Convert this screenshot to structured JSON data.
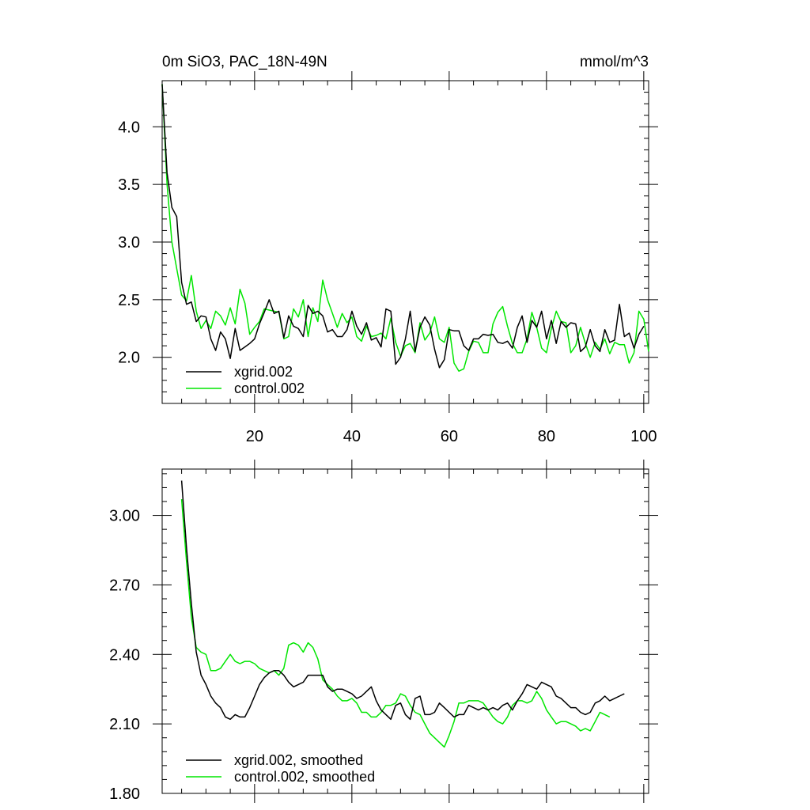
{
  "chart_data": [
    {
      "type": "line",
      "title": "0m SiO3, PAC_18N-49N",
      "units": "mmol/m^3",
      "xlim": [
        1,
        101
      ],
      "ylim": [
        1.6,
        4.4
      ],
      "xticks": [
        20,
        40,
        60,
        80,
        100
      ],
      "yticks": [
        2.0,
        2.5,
        3.0,
        3.5,
        4.0
      ],
      "ytick_labels": [
        "2.0",
        "2.5",
        "3.0",
        "3.5",
        "4.0"
      ],
      "xtick_labels": [
        "20",
        "40",
        "60",
        "80",
        "100"
      ],
      "legend": {
        "placement": "bottom-left"
      },
      "x_start": 1,
      "series": [
        {
          "name": "xgrid.002",
          "color": "#000000",
          "values": [
            4.37,
            3.6,
            3.3,
            3.22,
            2.65,
            2.46,
            2.48,
            2.31,
            2.36,
            2.35,
            2.16,
            2.06,
            2.22,
            2.16,
            1.99,
            2.25,
            2.06,
            2.09,
            2.12,
            2.16,
            2.29,
            2.39,
            2.5,
            2.38,
            2.4,
            2.17,
            2.36,
            2.27,
            2.25,
            2.18,
            2.45,
            2.38,
            2.4,
            2.36,
            2.22,
            2.24,
            2.18,
            2.18,
            2.24,
            2.4,
            2.27,
            2.2,
            2.3,
            2.15,
            2.17,
            2.09,
            2.42,
            2.4,
            1.94,
            2.0,
            2.16,
            2.4,
            2.05,
            2.26,
            2.35,
            2.28,
            2.07,
            1.91,
            1.98,
            2.24,
            2.23,
            2.23,
            2.1,
            2.06,
            2.16,
            2.16,
            2.2,
            2.19,
            2.2,
            2.13,
            2.12,
            2.14,
            2.08,
            2.26,
            2.36,
            2.13,
            2.32,
            2.26,
            2.4,
            2.16,
            2.32,
            2.12,
            2.31,
            2.26,
            2.3,
            2.29,
            2.05,
            2.09,
            2.24,
            2.1,
            2.05,
            2.24,
            2.13,
            2.15,
            2.46,
            2.18,
            2.21,
            2.08,
            2.2,
            2.27
          ]
        },
        {
          "name": "control.002",
          "color": "#00e600",
          "values": [
            4.37,
            3.5,
            3.0,
            2.77,
            2.54,
            2.49,
            2.71,
            2.4,
            2.25,
            2.32,
            2.25,
            2.4,
            2.36,
            2.28,
            2.43,
            2.29,
            2.59,
            2.47,
            2.2,
            2.26,
            2.31,
            2.42,
            2.41,
            2.4,
            2.39,
            2.16,
            2.18,
            2.42,
            2.35,
            2.5,
            2.18,
            2.43,
            2.31,
            2.67,
            2.5,
            2.38,
            2.26,
            2.38,
            2.3,
            2.35,
            2.18,
            2.14,
            2.27,
            2.18,
            2.19,
            2.21,
            2.16,
            2.34,
            2.13,
            2.01,
            2.1,
            2.12,
            2.04,
            2.3,
            2.15,
            2.21,
            2.35,
            2.16,
            2.13,
            2.26,
            1.95,
            1.88,
            1.9,
            2.05,
            2.14,
            2.13,
            2.04,
            2.04,
            2.29,
            2.39,
            2.44,
            2.27,
            2.12,
            2.04,
            2.04,
            2.16,
            2.39,
            2.26,
            2.08,
            2.04,
            2.25,
            2.4,
            2.31,
            2.3,
            2.04,
            2.1,
            2.26,
            2.12,
            2.0,
            2.13,
            2.07,
            2.16,
            2.03,
            2.13,
            2.11,
            2.11,
            1.95,
            2.04,
            2.4,
            2.33,
            2.05
          ]
        }
      ]
    },
    {
      "type": "line",
      "xlim": [
        1,
        101
      ],
      "ylim": [
        1.8,
        3.2
      ],
      "xticks": [
        20,
        40,
        60,
        80,
        100
      ],
      "yticks": [
        1.8,
        2.1,
        2.4,
        2.7,
        3.0
      ],
      "ytick_labels": [
        "1.80",
        "2.10",
        "2.40",
        "2.70",
        "3.00"
      ],
      "legend": {
        "placement": "bottom-left"
      },
      "x_start": 5,
      "series": [
        {
          "name": "xgrid.002, smoothed",
          "color": "#000000",
          "values": [
            3.15,
            2.86,
            2.62,
            2.41,
            2.31,
            2.27,
            2.22,
            2.19,
            2.17,
            2.13,
            2.12,
            2.14,
            2.13,
            2.13,
            2.17,
            2.22,
            2.27,
            2.3,
            2.32,
            2.33,
            2.33,
            2.31,
            2.28,
            2.26,
            2.27,
            2.28,
            2.31,
            2.31,
            2.31,
            2.31,
            2.26,
            2.24,
            2.25,
            2.25,
            2.24,
            2.23,
            2.21,
            2.22,
            2.24,
            2.26,
            2.2,
            2.16,
            2.14,
            2.12,
            2.18,
            2.19,
            2.14,
            2.12,
            2.21,
            2.22,
            2.14,
            2.14,
            2.15,
            2.19,
            2.17,
            2.15,
            2.13,
            2.14,
            2.14,
            2.18,
            2.17,
            2.16,
            2.17,
            2.16,
            2.17,
            2.16,
            2.18,
            2.19,
            2.16,
            2.2,
            2.23,
            2.27,
            2.26,
            2.25,
            2.28,
            2.27,
            2.26,
            2.22,
            2.21,
            2.19,
            2.17,
            2.17,
            2.15,
            2.14,
            2.15,
            2.19,
            2.2,
            2.22,
            2.2,
            2.21,
            2.22,
            2.23
          ]
        },
        {
          "name": "control.002, smoothed",
          "color": "#00e600",
          "values": [
            3.07,
            2.8,
            2.56,
            2.43,
            2.41,
            2.4,
            2.33,
            2.33,
            2.34,
            2.37,
            2.4,
            2.37,
            2.36,
            2.37,
            2.37,
            2.36,
            2.34,
            2.33,
            2.32,
            2.33,
            2.31,
            2.34,
            2.44,
            2.45,
            2.44,
            2.41,
            2.45,
            2.43,
            2.38,
            2.29,
            2.27,
            2.25,
            2.22,
            2.2,
            2.2,
            2.21,
            2.19,
            2.15,
            2.15,
            2.13,
            2.13,
            2.15,
            2.18,
            2.18,
            2.19,
            2.23,
            2.22,
            2.18,
            2.15,
            2.14,
            2.1,
            2.06,
            2.04,
            2.02,
            2.0,
            2.05,
            2.11,
            2.19,
            2.19,
            2.2,
            2.2,
            2.2,
            2.19,
            2.16,
            2.13,
            2.11,
            2.1,
            2.13,
            2.18,
            2.2,
            2.2,
            2.19,
            2.2,
            2.24,
            2.21,
            2.16,
            2.13,
            2.1,
            2.11,
            2.11,
            2.1,
            2.09,
            2.07,
            2.08,
            2.07,
            2.11,
            2.15,
            2.14,
            2.13
          ]
        }
      ]
    }
  ]
}
